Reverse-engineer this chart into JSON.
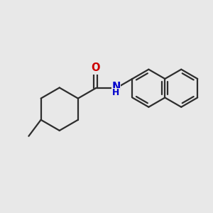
{
  "bg_color": "#e8e8e8",
  "bond_color": "#2d2d2d",
  "bond_width": 1.6,
  "O_color": "#cc0000",
  "N_color": "#0000cc",
  "font_size": 10.5,
  "xlim": [
    -3.8,
    4.2
  ],
  "ylim": [
    -2.2,
    2.2
  ]
}
